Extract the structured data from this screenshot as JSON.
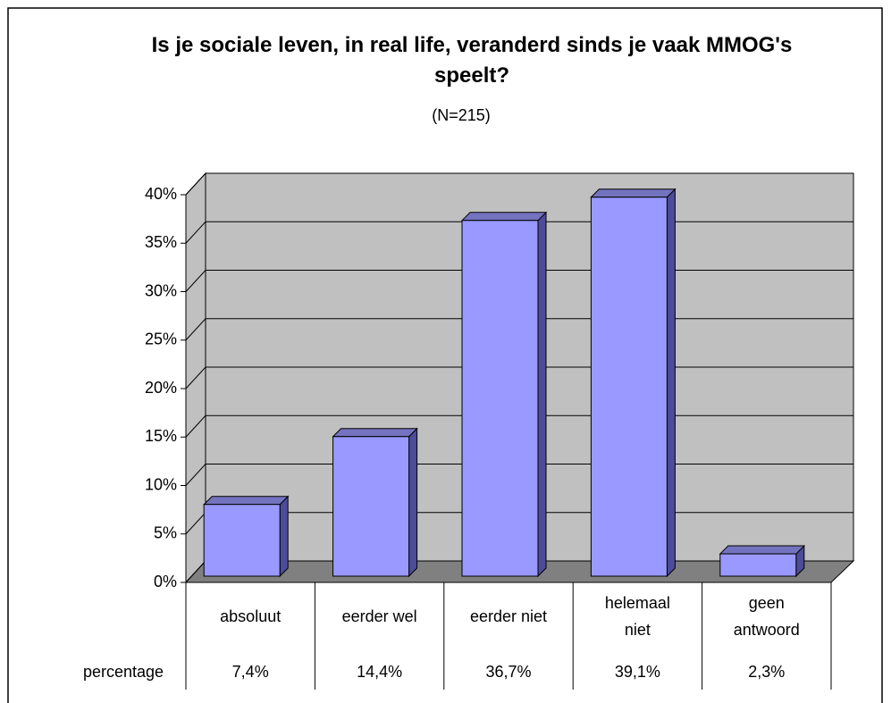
{
  "chart_data": {
    "type": "bar3d",
    "title": "Is je sociale leven, in real life, veranderd sinds je vaak MMOG's speelt?",
    "subtitle": "(N=215)",
    "categories": [
      "absoluut",
      "eerder wel",
      "eerder niet",
      [
        "helemaal",
        "niet"
      ],
      [
        "geen",
        "antwoord"
      ]
    ],
    "series": [
      {
        "name": "percentage",
        "color": "#9999ff",
        "values": [
          7.4,
          14.4,
          36.7,
          39.1,
          2.3
        ],
        "value_labels": [
          "7,4%",
          "14,4%",
          "36,7%",
          "39,1%",
          "2,3%"
        ]
      }
    ],
    "ylim": [
      0,
      40
    ],
    "yticks": [
      {
        "value": 0,
        "label": "0%"
      },
      {
        "value": 5,
        "label": "5%"
      },
      {
        "value": 10,
        "label": "10%"
      },
      {
        "value": 15,
        "label": "15%"
      },
      {
        "value": 20,
        "label": "20%"
      },
      {
        "value": 25,
        "label": "25%"
      },
      {
        "value": 30,
        "label": "30%"
      },
      {
        "value": 35,
        "label": "35%"
      },
      {
        "value": 40,
        "label": "40%"
      }
    ],
    "grid": true,
    "data_table": true
  }
}
